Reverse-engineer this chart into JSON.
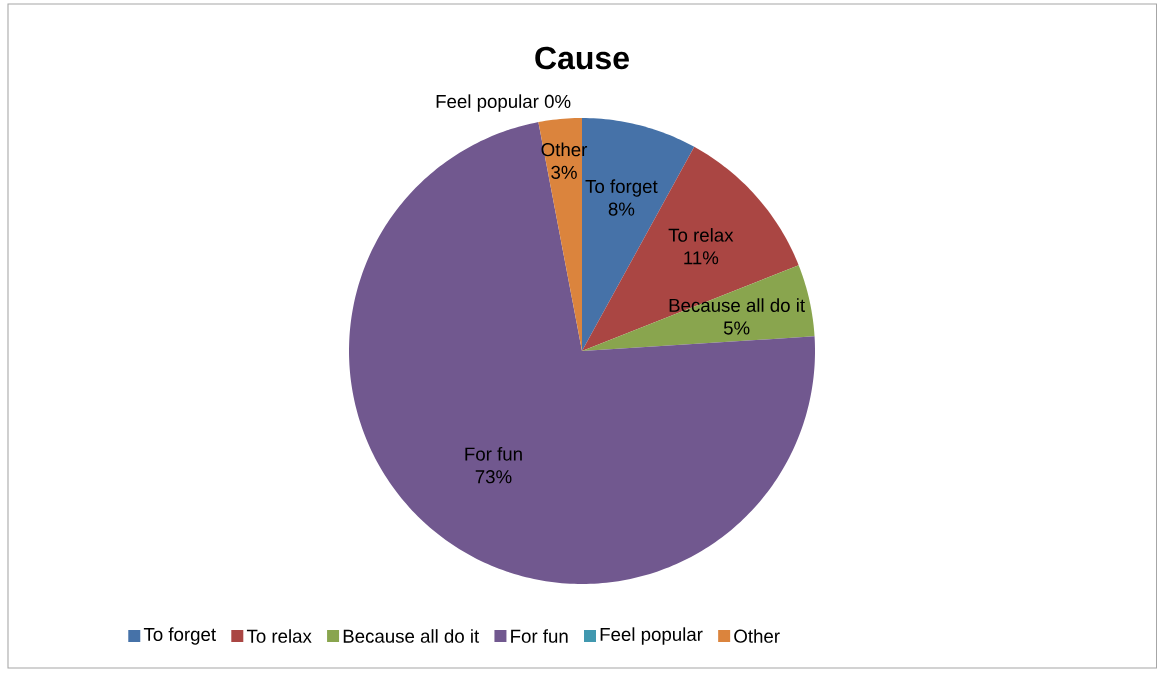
{
  "chart_data": {
    "type": "pie",
    "title": "Cause",
    "categories": [
      "To forget",
      "To relax",
      "Because all do it",
      "For fun",
      "Feel popular",
      "Other"
    ],
    "values": [
      8,
      11,
      5,
      73,
      0,
      3
    ],
    "colors": [
      "#4672A8",
      "#AA4643",
      "#89A54E",
      "#71588F",
      "#4198AF",
      "#DB843D"
    ],
    "value_labels": [
      "8%",
      "11%",
      "5%",
      "73%",
      "0%",
      "3%"
    ],
    "legend": "bottom"
  }
}
